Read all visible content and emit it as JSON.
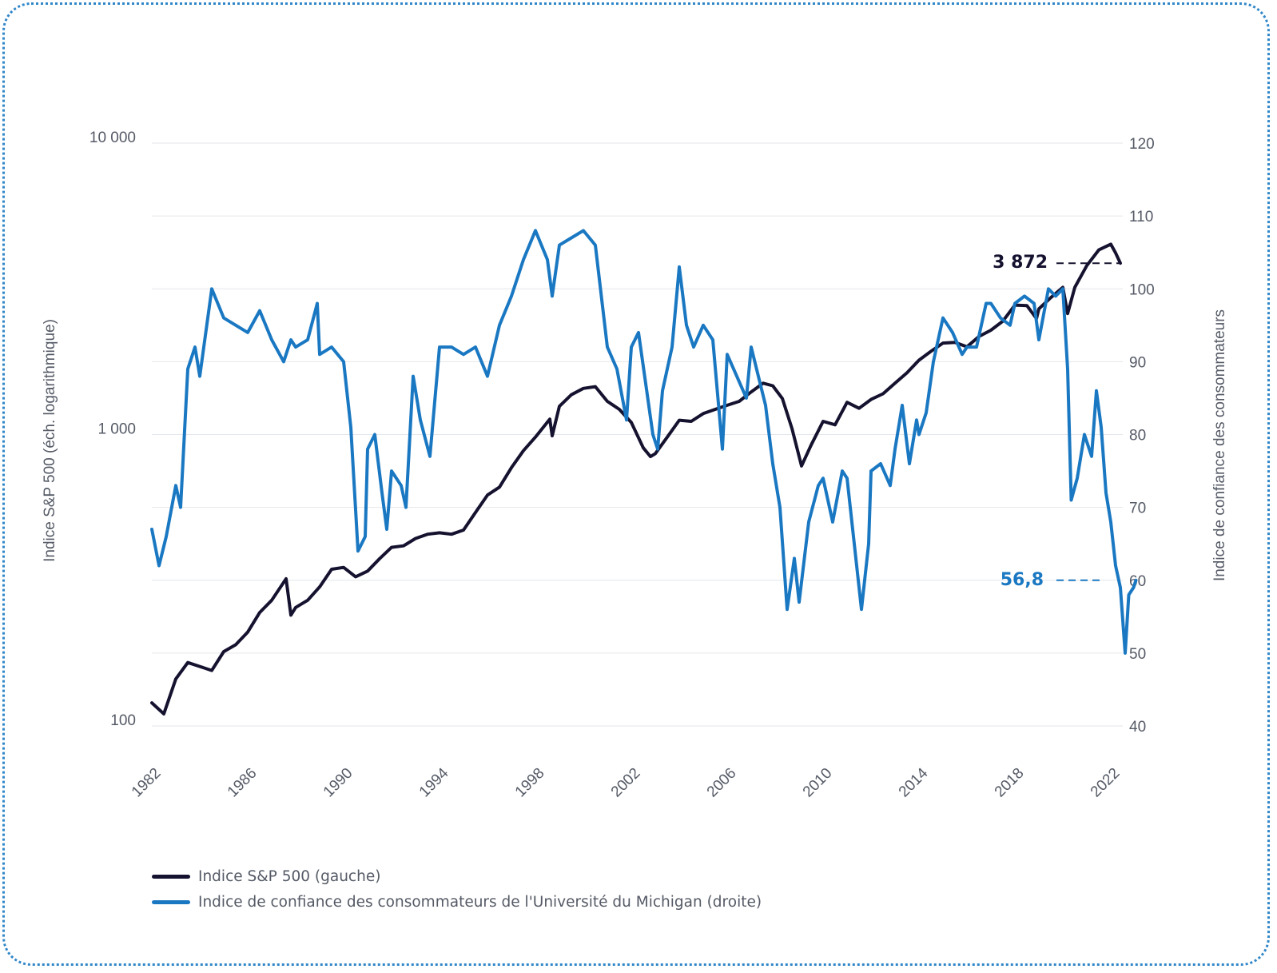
{
  "colors": {
    "sp500": "#15122f",
    "confidence": "#1a78c2",
    "grid": "#e3e6ea",
    "frame": "#2f86c8"
  },
  "legend": [
    {
      "label": "Indice S&P 500 (gauche)",
      "color": "#15122f"
    },
    {
      "label": "Indice de confiance des consommateurs de l'Université du Michigan (droite)",
      "color": "#1a78c2"
    }
  ],
  "chart_data": {
    "type": "line",
    "left_axis": {
      "label": "Indice S&P 500 (éch. logarithmique)",
      "scale": "log",
      "range": [
        100,
        10000
      ],
      "ticks": [
        "100",
        "1 000",
        "10 000"
      ]
    },
    "right_axis": {
      "label": "Indice de confiance des consommateurs",
      "scale": "linear",
      "range": [
        40,
        120
      ],
      "ticks": [
        "40",
        "50",
        "60",
        "70",
        "80",
        "90",
        "100",
        "110",
        "120"
      ]
    },
    "x_axis": {
      "range": [
        1982,
        2022.5
      ],
      "ticks": [
        "1982",
        "1986",
        "1990",
        "1994",
        "1998",
        "2002",
        "2006",
        "2010",
        "2014",
        "2018",
        "2022"
      ]
    },
    "grid": true,
    "legend_position": "bottom-left",
    "annotations": [
      {
        "series": "sp500",
        "text": "3 872",
        "value": 3872
      },
      {
        "series": "confidence",
        "text": "56,8",
        "value": 56.8
      }
    ],
    "series": [
      {
        "name": "Indice S&P 500 (gauche)",
        "axis": "left",
        "color": "#15122f",
        "points": [
          [
            1982.0,
            120
          ],
          [
            1982.5,
            110
          ],
          [
            1983.0,
            145
          ],
          [
            1983.5,
            165
          ],
          [
            1984.0,
            160
          ],
          [
            1984.5,
            155
          ],
          [
            1985.0,
            180
          ],
          [
            1985.5,
            190
          ],
          [
            1986.0,
            210
          ],
          [
            1986.5,
            245
          ],
          [
            1987.0,
            270
          ],
          [
            1987.6,
            320
          ],
          [
            1987.8,
            240
          ],
          [
            1988.0,
            255
          ],
          [
            1988.5,
            270
          ],
          [
            1989.0,
            300
          ],
          [
            1989.5,
            345
          ],
          [
            1990.0,
            350
          ],
          [
            1990.5,
            325
          ],
          [
            1991.0,
            340
          ],
          [
            1991.5,
            375
          ],
          [
            1992.0,
            410
          ],
          [
            1992.5,
            415
          ],
          [
            1993.0,
            440
          ],
          [
            1993.5,
            455
          ],
          [
            1994.0,
            460
          ],
          [
            1994.5,
            455
          ],
          [
            1995.0,
            470
          ],
          [
            1995.5,
            540
          ],
          [
            1996.0,
            620
          ],
          [
            1996.5,
            660
          ],
          [
            1997.0,
            770
          ],
          [
            1997.5,
            880
          ],
          [
            1998.0,
            980
          ],
          [
            1998.6,
            1130
          ],
          [
            1998.7,
            990
          ],
          [
            1999.0,
            1250
          ],
          [
            1999.5,
            1370
          ],
          [
            2000.0,
            1440
          ],
          [
            2000.5,
            1460
          ],
          [
            2001.0,
            1300
          ],
          [
            2001.5,
            1220
          ],
          [
            2002.0,
            1100
          ],
          [
            2002.5,
            900
          ],
          [
            2002.8,
            840
          ],
          [
            2003.0,
            860
          ],
          [
            2003.5,
            980
          ],
          [
            2004.0,
            1120
          ],
          [
            2004.5,
            1110
          ],
          [
            2005.0,
            1180
          ],
          [
            2005.5,
            1220
          ],
          [
            2006.0,
            1260
          ],
          [
            2006.5,
            1300
          ],
          [
            2007.0,
            1400
          ],
          [
            2007.5,
            1500
          ],
          [
            2007.9,
            1470
          ],
          [
            2008.3,
            1330
          ],
          [
            2008.7,
            1050
          ],
          [
            2009.1,
            780
          ],
          [
            2009.5,
            920
          ],
          [
            2010.0,
            1110
          ],
          [
            2010.5,
            1080
          ],
          [
            2011.0,
            1290
          ],
          [
            2011.5,
            1230
          ],
          [
            2012.0,
            1320
          ],
          [
            2012.5,
            1380
          ],
          [
            2013.0,
            1500
          ],
          [
            2013.5,
            1630
          ],
          [
            2014.0,
            1800
          ],
          [
            2014.5,
            1930
          ],
          [
            2015.0,
            2060
          ],
          [
            2015.5,
            2070
          ],
          [
            2016.0,
            2000
          ],
          [
            2016.5,
            2170
          ],
          [
            2017.0,
            2280
          ],
          [
            2017.5,
            2450
          ],
          [
            2018.0,
            2780
          ],
          [
            2018.5,
            2770
          ],
          [
            2018.9,
            2500
          ],
          [
            2019.0,
            2700
          ],
          [
            2019.5,
            2950
          ],
          [
            2020.0,
            3200
          ],
          [
            2020.2,
            2600
          ],
          [
            2020.5,
            3200
          ],
          [
            2021.0,
            3800
          ],
          [
            2021.5,
            4300
          ],
          [
            2022.0,
            4500
          ],
          [
            2022.2,
            4200
          ],
          [
            2022.4,
            3872
          ]
        ]
      },
      {
        "name": "Indice de confiance des consommateurs de l'Université du Michigan (droite)",
        "axis": "right",
        "color": "#1a78c2",
        "points": [
          [
            1982.0,
            67
          ],
          [
            1982.3,
            62
          ],
          [
            1982.6,
            66
          ],
          [
            1983.0,
            73
          ],
          [
            1983.2,
            70
          ],
          [
            1983.5,
            89
          ],
          [
            1983.8,
            92
          ],
          [
            1984.0,
            88
          ],
          [
            1984.5,
            100
          ],
          [
            1985.0,
            96
          ],
          [
            1985.5,
            95
          ],
          [
            1986.0,
            94
          ],
          [
            1986.5,
            97
          ],
          [
            1987.0,
            93
          ],
          [
            1987.5,
            90
          ],
          [
            1987.8,
            93
          ],
          [
            1988.0,
            92
          ],
          [
            1988.5,
            93
          ],
          [
            1988.9,
            98
          ],
          [
            1989.0,
            91
          ],
          [
            1989.5,
            92
          ],
          [
            1990.0,
            90
          ],
          [
            1990.3,
            81
          ],
          [
            1990.6,
            64
          ],
          [
            1990.9,
            66
          ],
          [
            1991.0,
            78
          ],
          [
            1991.3,
            80
          ],
          [
            1991.6,
            72
          ],
          [
            1991.8,
            67
          ],
          [
            1992.0,
            75
          ],
          [
            1992.4,
            73
          ],
          [
            1992.6,
            70
          ],
          [
            1992.9,
            88
          ],
          [
            1993.2,
            82
          ],
          [
            1993.6,
            77
          ],
          [
            1994.0,
            92
          ],
          [
            1994.5,
            92
          ],
          [
            1995.0,
            91
          ],
          [
            1995.5,
            92
          ],
          [
            1996.0,
            88
          ],
          [
            1996.5,
            95
          ],
          [
            1997.0,
            99
          ],
          [
            1997.5,
            104
          ],
          [
            1998.0,
            108
          ],
          [
            1998.5,
            104
          ],
          [
            1998.7,
            99
          ],
          [
            1999.0,
            106
          ],
          [
            1999.5,
            107
          ],
          [
            2000.0,
            108
          ],
          [
            2000.5,
            106
          ],
          [
            2001.0,
            92
          ],
          [
            2001.4,
            89
          ],
          [
            2001.8,
            82
          ],
          [
            2002.0,
            92
          ],
          [
            2002.3,
            94
          ],
          [
            2002.6,
            87
          ],
          [
            2002.9,
            80
          ],
          [
            2003.1,
            78
          ],
          [
            2003.3,
            86
          ],
          [
            2003.7,
            92
          ],
          [
            2004.0,
            103
          ],
          [
            2004.3,
            95
          ],
          [
            2004.6,
            92
          ],
          [
            2005.0,
            95
          ],
          [
            2005.4,
            93
          ],
          [
            2005.8,
            78
          ],
          [
            2006.0,
            91
          ],
          [
            2006.4,
            88
          ],
          [
            2006.8,
            85
          ],
          [
            2007.0,
            92
          ],
          [
            2007.3,
            88
          ],
          [
            2007.6,
            84
          ],
          [
            2007.9,
            76
          ],
          [
            2008.2,
            70
          ],
          [
            2008.5,
            56
          ],
          [
            2008.8,
            63
          ],
          [
            2009.0,
            57
          ],
          [
            2009.4,
            68
          ],
          [
            2009.8,
            73
          ],
          [
            2010.0,
            74
          ],
          [
            2010.4,
            68
          ],
          [
            2010.8,
            75
          ],
          [
            2011.0,
            74
          ],
          [
            2011.3,
            65
          ],
          [
            2011.6,
            56
          ],
          [
            2011.9,
            65
          ],
          [
            2012.0,
            75
          ],
          [
            2012.4,
            76
          ],
          [
            2012.8,
            73
          ],
          [
            2013.0,
            78
          ],
          [
            2013.3,
            84
          ],
          [
            2013.6,
            76
          ],
          [
            2013.9,
            82
          ],
          [
            2014.0,
            80
          ],
          [
            2014.3,
            83
          ],
          [
            2014.6,
            90
          ],
          [
            2015.0,
            96
          ],
          [
            2015.4,
            94
          ],
          [
            2015.8,
            91
          ],
          [
            2016.0,
            92
          ],
          [
            2016.4,
            92
          ],
          [
            2016.8,
            98
          ],
          [
            2017.0,
            98
          ],
          [
            2017.4,
            96
          ],
          [
            2017.8,
            95
          ],
          [
            2018.0,
            98
          ],
          [
            2018.4,
            99
          ],
          [
            2018.8,
            98
          ],
          [
            2019.0,
            93
          ],
          [
            2019.4,
            100
          ],
          [
            2019.7,
            99
          ],
          [
            2020.0,
            100
          ],
          [
            2020.2,
            89
          ],
          [
            2020.35,
            71
          ],
          [
            2020.6,
            74
          ],
          [
            2020.9,
            80
          ],
          [
            2021.2,
            77
          ],
          [
            2021.4,
            86
          ],
          [
            2021.6,
            81
          ],
          [
            2021.8,
            72
          ],
          [
            2022.0,
            68
          ],
          [
            2022.2,
            62
          ],
          [
            2022.4,
            59
          ],
          [
            2022.6,
            50
          ],
          [
            2022.75,
            58
          ],
          [
            2022.95,
            59
          ],
          [
            2023.05,
            60
          ]
        ]
      }
    ]
  }
}
